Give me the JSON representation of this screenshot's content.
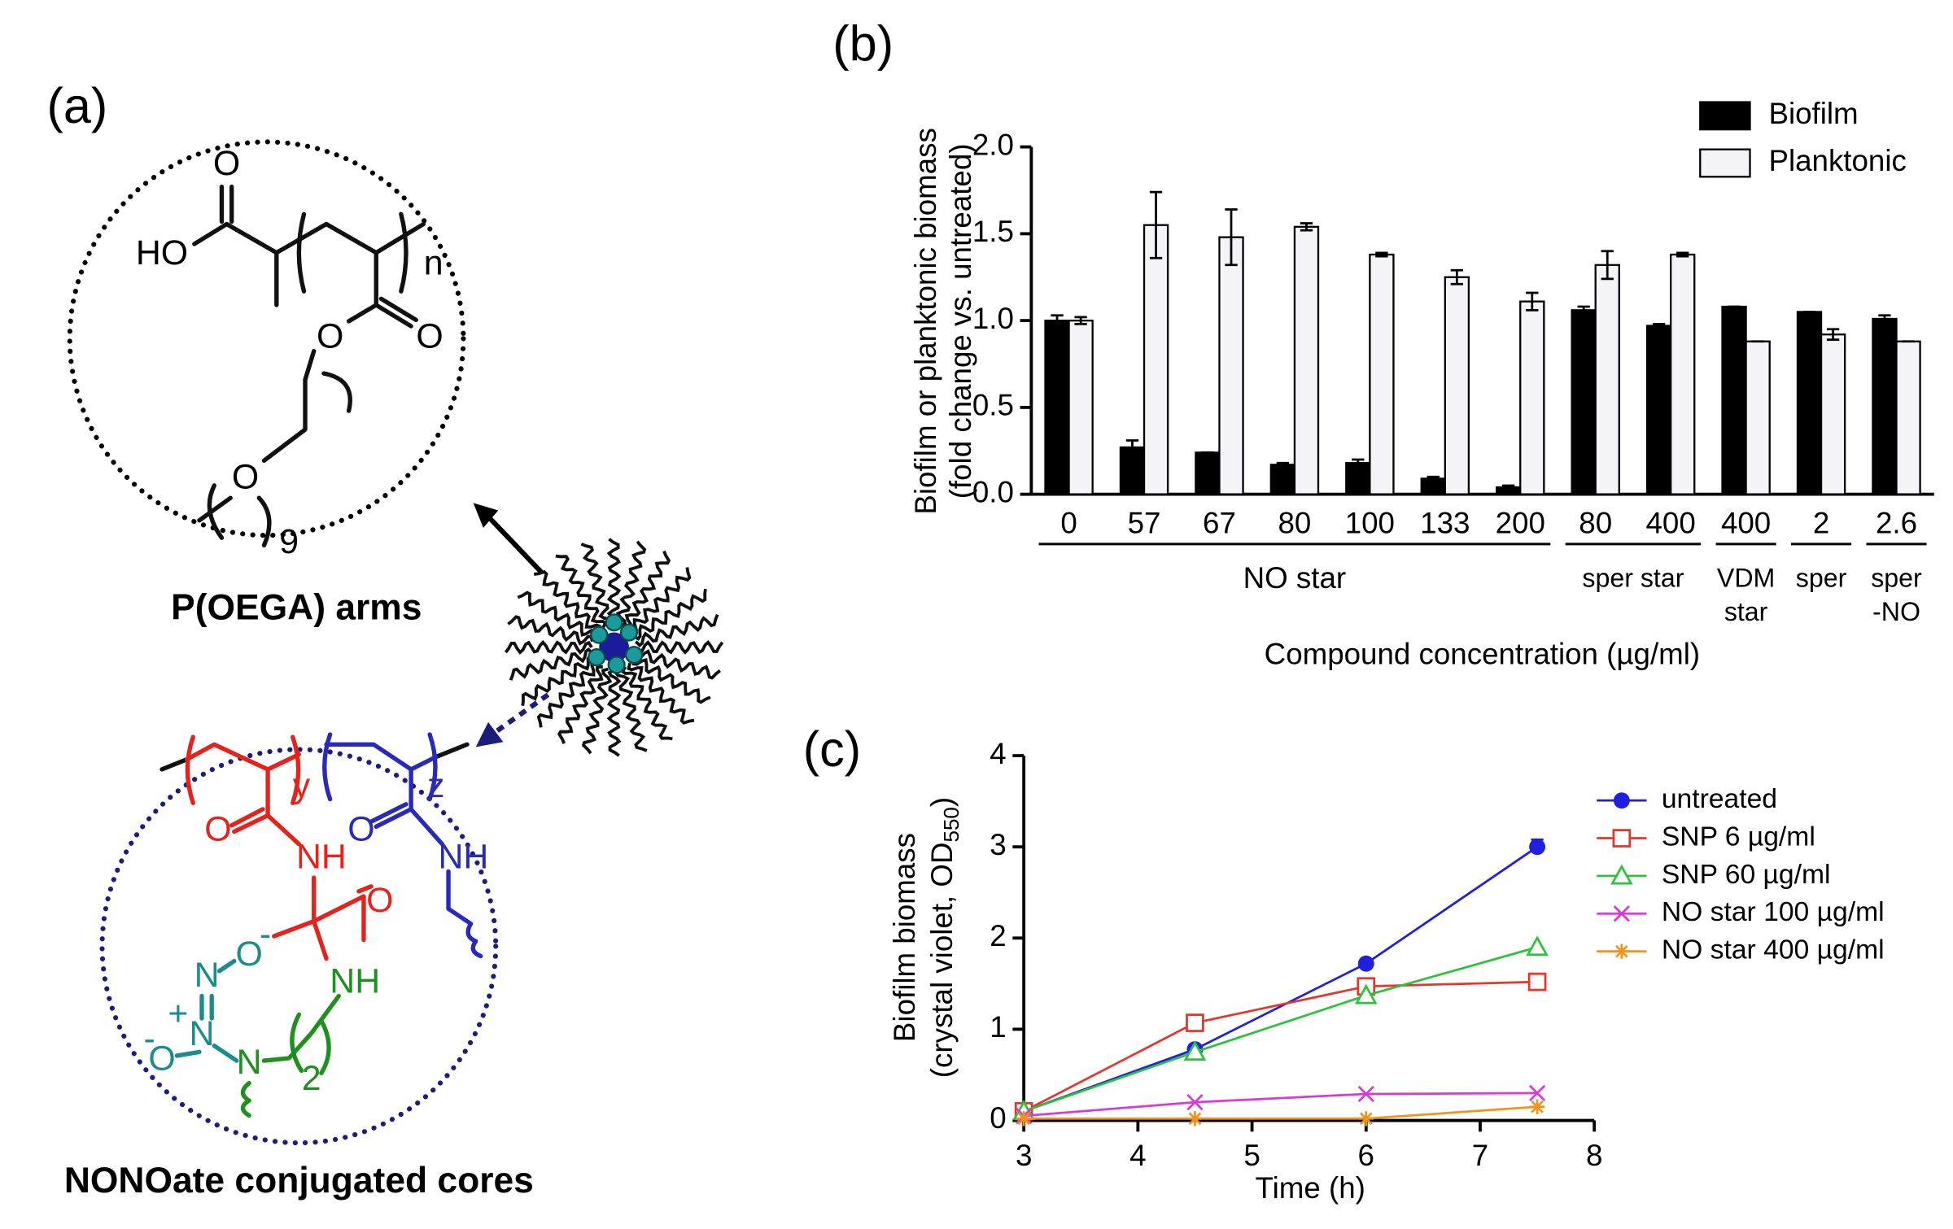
{
  "panel_a": {
    "panel_label": "(a)",
    "arms_caption": "P(OEGA) arms",
    "cores_caption": "NONOate conjugated cores",
    "top_atoms": [
      "O",
      "HO",
      "n",
      "O",
      "O",
      "O",
      "9"
    ],
    "bottom_atoms": [
      "y",
      "z",
      "O",
      "NH",
      "O",
      "NH",
      "O",
      "NH",
      "N",
      "O",
      "-",
      "+",
      "N",
      "-",
      "O",
      "N",
      "2"
    ]
  },
  "chart_data": [
    {
      "type": "bar",
      "panel_label": "(b)",
      "ylabel": [
        "Biofilm or planktonic biomass",
        "(fold change vs. untreated)"
      ],
      "xlabel": "Compound concentration (µg/ml)",
      "category_groups": [
        {
          "label": [
            "NO star"
          ],
          "categories": [
            "0",
            "57",
            "67",
            "80",
            "100",
            "133",
            "200"
          ]
        },
        {
          "label": [
            "sper star"
          ],
          "categories": [
            "80",
            "400"
          ]
        },
        {
          "label": [
            "VDM",
            "star"
          ],
          "categories": [
            "400"
          ]
        },
        {
          "label": [
            "sper"
          ],
          "categories": [
            "2"
          ]
        },
        {
          "label": [
            "sper",
            "-NO"
          ],
          "categories": [
            "2.6"
          ]
        }
      ],
      "series": [
        {
          "name": "Biofilm",
          "color": "#000000",
          "values": [
            1.0,
            0.27,
            0.24,
            0.17,
            0.18,
            0.09,
            0.04,
            1.06,
            0.97,
            1.08,
            1.05,
            1.01
          ],
          "errors": [
            0.03,
            0.04,
            0,
            0.01,
            0.02,
            0.01,
            0.01,
            0.02,
            0.01,
            0,
            0,
            0.02
          ]
        },
        {
          "name": "Planktonic",
          "color": "#f3f3f8",
          "values": [
            1.0,
            1.55,
            1.48,
            1.54,
            1.38,
            1.25,
            1.11,
            1.32,
            1.38,
            0.88,
            0.92,
            0.88
          ],
          "errors": [
            0.02,
            0.19,
            0.16,
            0.02,
            0.01,
            0.04,
            0.05,
            0.08,
            0.01,
            0,
            0.03,
            0
          ]
        }
      ],
      "ylim": [
        0,
        2
      ],
      "yticks": [
        {
          "value": 0,
          "label": "0.0"
        },
        0.5,
        {
          "value": 1,
          "label": "1.0"
        },
        1.5,
        {
          "value": 2,
          "label": "2.0"
        }
      ],
      "legend": "upper right"
    },
    {
      "type": "line",
      "panel_label": "(c)",
      "ylabel": "Biofilm biomass",
      "ylabel2": "(crystal violet, OD",
      "ylabel2_sub": "550",
      "ylabel2_end": ")",
      "xlabel": "Time (h)",
      "x": [
        3,
        4.5,
        6,
        7.5
      ],
      "series": [
        {
          "name": "untreated",
          "color": "#1f1fe0",
          "marker": "circle",
          "values": [
            0.1,
            0.78,
            1.72,
            3.0
          ],
          "errors": [
            0.03,
            0.05,
            0.03,
            0.08
          ]
        },
        {
          "name": "SNP 6 µg/ml",
          "color": "#e5352c",
          "marker": "square",
          "values": [
            0.1,
            1.07,
            1.47,
            1.52
          ]
        },
        {
          "name": "SNP 60 µg/ml",
          "color": "#2cc23c",
          "marker": "triangle",
          "values": [
            0.1,
            0.75,
            1.37,
            1.9
          ]
        },
        {
          "name": "NO star 100 µg/ml",
          "color": "#d63bd6",
          "marker": "x",
          "values": [
            0.05,
            0.2,
            0.29,
            0.3
          ]
        },
        {
          "name": "NO star 400 µg/ml",
          "color": "#f0951c",
          "marker": "star",
          "values": [
            0.02,
            0.02,
            0.02,
            0.15
          ]
        }
      ],
      "xlim": [
        3,
        8
      ],
      "xticks": [
        3,
        4,
        5,
        6,
        7,
        8
      ],
      "ylim": [
        0,
        4
      ],
      "yticks": [
        0,
        1,
        2,
        3,
        4
      ],
      "legend": "upper right"
    }
  ]
}
